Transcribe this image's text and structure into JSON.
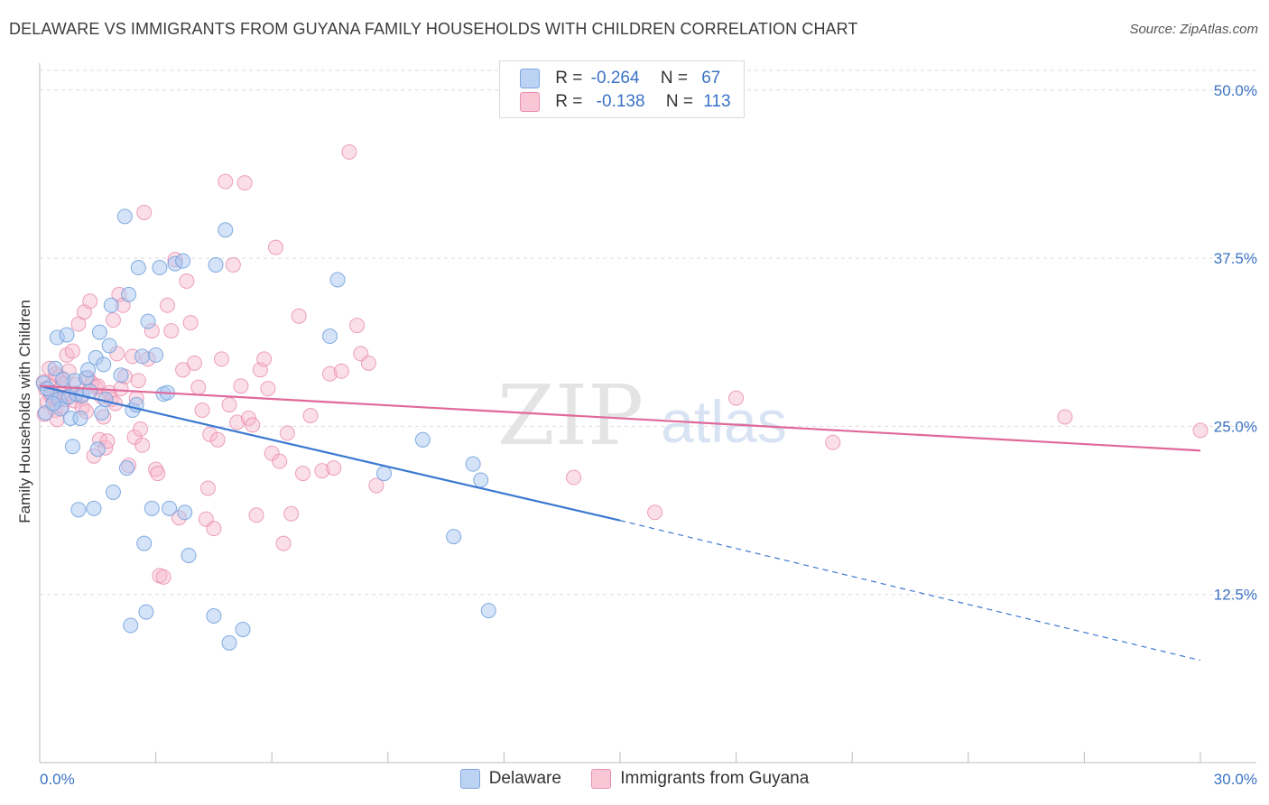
{
  "header": {
    "title": "DELAWARE VS IMMIGRANTS FROM GUYANA FAMILY HOUSEHOLDS WITH CHILDREN CORRELATION CHART",
    "source": "Source: ZipAtlas.com"
  },
  "watermark": {
    "zip": "ZIP",
    "atlas": "atlas"
  },
  "legend": {
    "r_label": "R =",
    "n_label": "N =",
    "rows": [
      {
        "r": "-0.264",
        "n": "67"
      },
      {
        "r": "-0.138",
        "n": "113"
      }
    ]
  },
  "colors": {
    "blue_fill": "#a9c8ef",
    "blue_stroke": "#6e9fdc",
    "blue_line": "#3b78d1",
    "pink_fill": "#f6b9cc",
    "pink_stroke": "#e88aab",
    "pink_line": "#e0699a",
    "grid": "#dddddd",
    "tick_label": "#3a72c4"
  },
  "chart_data": {
    "type": "scatter",
    "title": "DELAWARE VS IMMIGRANTS FROM GUYANA FAMILY HOUSEHOLDS WITH CHILDREN CORRELATION CHART",
    "xlabel": "",
    "ylabel": "Family Households with Children",
    "xlim": [
      0,
      30
    ],
    "ylim": [
      0,
      52
    ],
    "x_tick_labels": [
      {
        "value": 0,
        "label": "0.0%"
      },
      {
        "value": 30,
        "label": "30.0%"
      }
    ],
    "y_tick_labels": [
      {
        "value": 12.5,
        "label": "12.5%"
      },
      {
        "value": 25.0,
        "label": "25.0%"
      },
      {
        "value": 37.5,
        "label": "37.5%"
      },
      {
        "value": 50.0,
        "label": "50.0%"
      }
    ],
    "legend_position": "top-center",
    "series": [
      {
        "name": "Delaware",
        "r": -0.264,
        "n": 67,
        "trend": {
          "x0": 0,
          "y0": 28.0,
          "x1": 15,
          "y1": 18.0,
          "dash_to_x": 30,
          "dash_to_y": 7.6
        },
        "points": [
          [
            0.1,
            28.2
          ],
          [
            0.15,
            26.0
          ],
          [
            0.3,
            27.5
          ],
          [
            0.4,
            29.3
          ],
          [
            0.45,
            31.6
          ],
          [
            0.5,
            27.0
          ],
          [
            0.55,
            26.3
          ],
          [
            0.6,
            28.5
          ],
          [
            0.7,
            31.8
          ],
          [
            0.75,
            27.2
          ],
          [
            0.8,
            25.6
          ],
          [
            0.85,
            23.5
          ],
          [
            0.9,
            28.4
          ],
          [
            0.95,
            27.4
          ],
          [
            1.0,
            18.8
          ],
          [
            1.05,
            25.6
          ],
          [
            1.1,
            27.3
          ],
          [
            1.2,
            28.6
          ],
          [
            1.25,
            29.2
          ],
          [
            1.3,
            27.6
          ],
          [
            1.4,
            18.9
          ],
          [
            1.45,
            30.1
          ],
          [
            1.5,
            23.3
          ],
          [
            1.55,
            32.0
          ],
          [
            1.6,
            26.0
          ],
          [
            1.65,
            29.6
          ],
          [
            1.7,
            27.0
          ],
          [
            1.8,
            31.0
          ],
          [
            1.85,
            34.0
          ],
          [
            1.9,
            20.1
          ],
          [
            2.1,
            28.8
          ],
          [
            2.2,
            40.6
          ],
          [
            2.25,
            21.9
          ],
          [
            2.3,
            34.8
          ],
          [
            2.35,
            10.2
          ],
          [
            2.4,
            26.2
          ],
          [
            2.5,
            26.6
          ],
          [
            2.55,
            36.8
          ],
          [
            2.65,
            30.2
          ],
          [
            2.7,
            16.3
          ],
          [
            2.75,
            11.2
          ],
          [
            2.8,
            32.8
          ],
          [
            2.9,
            18.9
          ],
          [
            3.0,
            30.3
          ],
          [
            3.1,
            36.8
          ],
          [
            3.2,
            27.4
          ],
          [
            3.3,
            27.5
          ],
          [
            3.35,
            18.9
          ],
          [
            3.5,
            37.1
          ],
          [
            3.7,
            37.3
          ],
          [
            3.75,
            18.6
          ],
          [
            3.85,
            15.4
          ],
          [
            4.5,
            10.9
          ],
          [
            4.55,
            37.0
          ],
          [
            4.8,
            39.6
          ],
          [
            4.9,
            8.9
          ],
          [
            5.25,
            9.9
          ],
          [
            7.5,
            31.7
          ],
          [
            7.7,
            35.9
          ],
          [
            8.9,
            21.5
          ],
          [
            9.9,
            24.0
          ],
          [
            10.7,
            16.8
          ],
          [
            11.2,
            22.2
          ],
          [
            11.4,
            21.0
          ],
          [
            11.6,
            11.3
          ],
          [
            0.2,
            27.8
          ],
          [
            0.35,
            26.7
          ]
        ]
      },
      {
        "name": "Immigrants from Guyana",
        "r": -0.138,
        "n": 113,
        "trend": {
          "x0": 0,
          "y0": 28.0,
          "x1": 30,
          "y1": 23.2
        },
        "points": [
          [
            0.1,
            28.3
          ],
          [
            0.15,
            27.8
          ],
          [
            0.2,
            26.8
          ],
          [
            0.25,
            29.3
          ],
          [
            0.3,
            28.0
          ],
          [
            0.35,
            27.1
          ],
          [
            0.4,
            26.2
          ],
          [
            0.45,
            25.5
          ],
          [
            0.5,
            28.7
          ],
          [
            0.55,
            27.8
          ],
          [
            0.6,
            28.2
          ],
          [
            0.65,
            27.0
          ],
          [
            0.7,
            30.3
          ],
          [
            0.75,
            29.1
          ],
          [
            0.8,
            27.4
          ],
          [
            0.85,
            30.6
          ],
          [
            0.9,
            26.9
          ],
          [
            0.95,
            28.1
          ],
          [
            1.0,
            32.6
          ],
          [
            1.05,
            27.2
          ],
          [
            1.1,
            26.4
          ],
          [
            1.15,
            33.5
          ],
          [
            1.2,
            26.1
          ],
          [
            1.25,
            28.6
          ],
          [
            1.3,
            34.3
          ],
          [
            1.35,
            28.2
          ],
          [
            1.4,
            22.8
          ],
          [
            1.45,
            27.9
          ],
          [
            1.5,
            28.0
          ],
          [
            1.55,
            24.0
          ],
          [
            1.6,
            27.2
          ],
          [
            1.65,
            25.7
          ],
          [
            1.7,
            23.4
          ],
          [
            1.75,
            23.9
          ],
          [
            1.8,
            27.5
          ],
          [
            1.85,
            27.0
          ],
          [
            1.9,
            32.9
          ],
          [
            1.95,
            26.7
          ],
          [
            2.0,
            30.4
          ],
          [
            2.05,
            34.8
          ],
          [
            2.1,
            27.8
          ],
          [
            2.15,
            34.0
          ],
          [
            2.2,
            28.7
          ],
          [
            2.3,
            22.1
          ],
          [
            2.4,
            30.2
          ],
          [
            2.45,
            24.2
          ],
          [
            2.5,
            27.1
          ],
          [
            2.55,
            28.4
          ],
          [
            2.6,
            24.8
          ],
          [
            2.65,
            23.6
          ],
          [
            2.7,
            40.9
          ],
          [
            2.8,
            30.0
          ],
          [
            2.9,
            32.1
          ],
          [
            3.0,
            21.8
          ],
          [
            3.05,
            21.5
          ],
          [
            3.1,
            13.9
          ],
          [
            3.2,
            13.8
          ],
          [
            3.3,
            34.0
          ],
          [
            3.4,
            32.1
          ],
          [
            3.5,
            37.4
          ],
          [
            3.6,
            18.2
          ],
          [
            3.7,
            29.2
          ],
          [
            3.8,
            35.8
          ],
          [
            3.9,
            32.7
          ],
          [
            4.0,
            29.7
          ],
          [
            4.1,
            27.9
          ],
          [
            4.2,
            26.2
          ],
          [
            4.3,
            18.1
          ],
          [
            4.35,
            20.4
          ],
          [
            4.4,
            24.4
          ],
          [
            4.5,
            17.4
          ],
          [
            4.6,
            24.0
          ],
          [
            4.7,
            30.0
          ],
          [
            4.8,
            43.2
          ],
          [
            4.9,
            26.6
          ],
          [
            5.0,
            37.0
          ],
          [
            5.1,
            25.3
          ],
          [
            5.2,
            28.0
          ],
          [
            5.3,
            43.1
          ],
          [
            5.4,
            25.6
          ],
          [
            5.5,
            25.1
          ],
          [
            5.6,
            18.4
          ],
          [
            5.7,
            29.2
          ],
          [
            5.8,
            30.0
          ],
          [
            5.9,
            27.8
          ],
          [
            6.0,
            23.0
          ],
          [
            6.1,
            38.3
          ],
          [
            6.2,
            22.4
          ],
          [
            6.3,
            16.3
          ],
          [
            6.4,
            24.5
          ],
          [
            6.5,
            18.5
          ],
          [
            6.7,
            33.2
          ],
          [
            6.8,
            21.5
          ],
          [
            7.0,
            25.8
          ],
          [
            7.3,
            21.7
          ],
          [
            7.5,
            28.9
          ],
          [
            7.6,
            21.9
          ],
          [
            7.8,
            29.1
          ],
          [
            8.0,
            45.4
          ],
          [
            8.2,
            32.5
          ],
          [
            8.3,
            30.4
          ],
          [
            8.5,
            29.7
          ],
          [
            8.7,
            20.6
          ],
          [
            13.8,
            21.2
          ],
          [
            15.9,
            18.6
          ],
          [
            18.0,
            27.1
          ],
          [
            20.5,
            23.8
          ],
          [
            26.5,
            25.7
          ],
          [
            30.0,
            24.7
          ],
          [
            0.12,
            25.9
          ],
          [
            0.28,
            27.3
          ],
          [
            0.42,
            28.9
          ],
          [
            0.58,
            26.5
          ]
        ]
      }
    ]
  },
  "bottom_legend": {
    "items": [
      "Delaware",
      "Immigrants from Guyana"
    ]
  }
}
